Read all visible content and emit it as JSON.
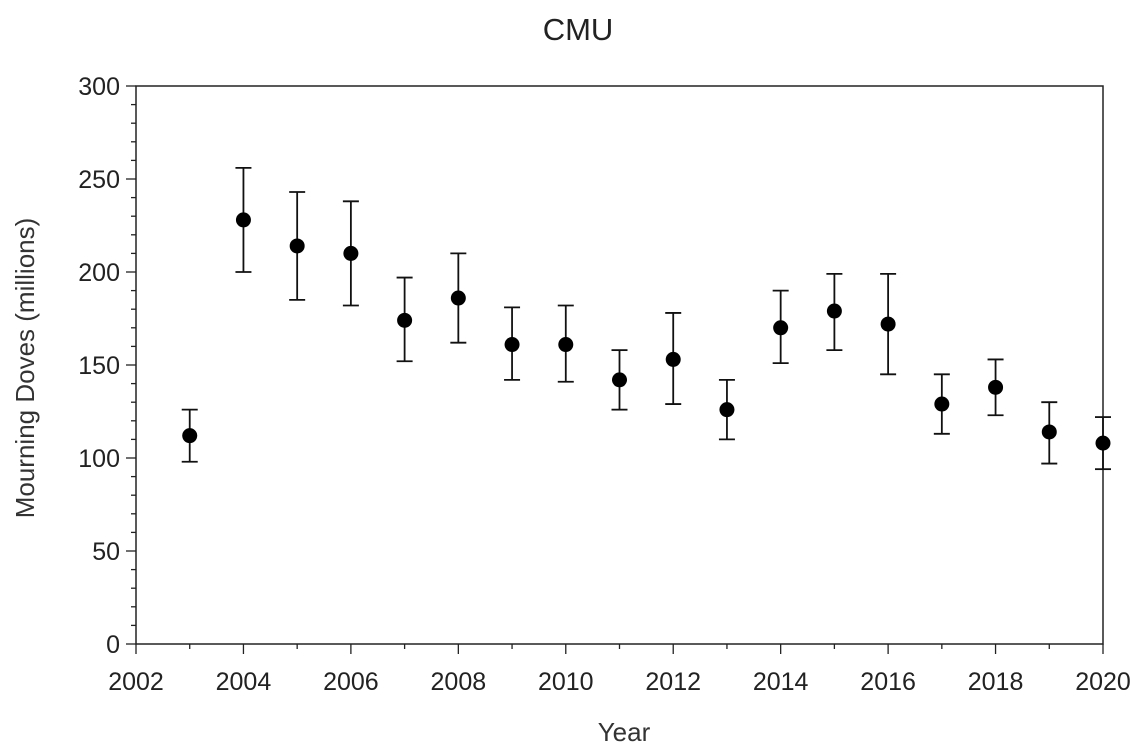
{
  "chart_data": {
    "type": "scatter",
    "title": "CMU",
    "xlabel": "Year",
    "ylabel": "Mourning Doves (millions)",
    "xlim": [
      2002,
      2020
    ],
    "ylim": [
      0,
      300
    ],
    "xticks": [
      2002,
      2004,
      2006,
      2008,
      2010,
      2012,
      2014,
      2016,
      2018,
      2020
    ],
    "yticks": [
      0,
      50,
      100,
      150,
      200,
      250,
      300
    ],
    "x_minor_step": 1,
    "y_minor_step": 10,
    "grid": false,
    "legend": "none",
    "error_bars": true,
    "marker_color": "#000000",
    "points": [
      {
        "x": 2003,
        "y": 112,
        "lower": 98,
        "upper": 126
      },
      {
        "x": 2004,
        "y": 228,
        "lower": 200,
        "upper": 256
      },
      {
        "x": 2005,
        "y": 214,
        "lower": 185,
        "upper": 243
      },
      {
        "x": 2006,
        "y": 210,
        "lower": 182,
        "upper": 238
      },
      {
        "x": 2007,
        "y": 174,
        "lower": 152,
        "upper": 197
      },
      {
        "x": 2008,
        "y": 186,
        "lower": 162,
        "upper": 210
      },
      {
        "x": 2009,
        "y": 161,
        "lower": 142,
        "upper": 181
      },
      {
        "x": 2010,
        "y": 161,
        "lower": 141,
        "upper": 182
      },
      {
        "x": 2011,
        "y": 142,
        "lower": 126,
        "upper": 158
      },
      {
        "x": 2012,
        "y": 153,
        "lower": 129,
        "upper": 178
      },
      {
        "x": 2013,
        "y": 126,
        "lower": 110,
        "upper": 142
      },
      {
        "x": 2014,
        "y": 170,
        "lower": 151,
        "upper": 190
      },
      {
        "x": 2015,
        "y": 179,
        "lower": 158,
        "upper": 199
      },
      {
        "x": 2016,
        "y": 172,
        "lower": 145,
        "upper": 199
      },
      {
        "x": 2017,
        "y": 129,
        "lower": 113,
        "upper": 145
      },
      {
        "x": 2018,
        "y": 138,
        "lower": 123,
        "upper": 153
      },
      {
        "x": 2019,
        "y": 114,
        "lower": 97,
        "upper": 130
      },
      {
        "x": 2020,
        "y": 108,
        "lower": 94,
        "upper": 122
      }
    ]
  }
}
